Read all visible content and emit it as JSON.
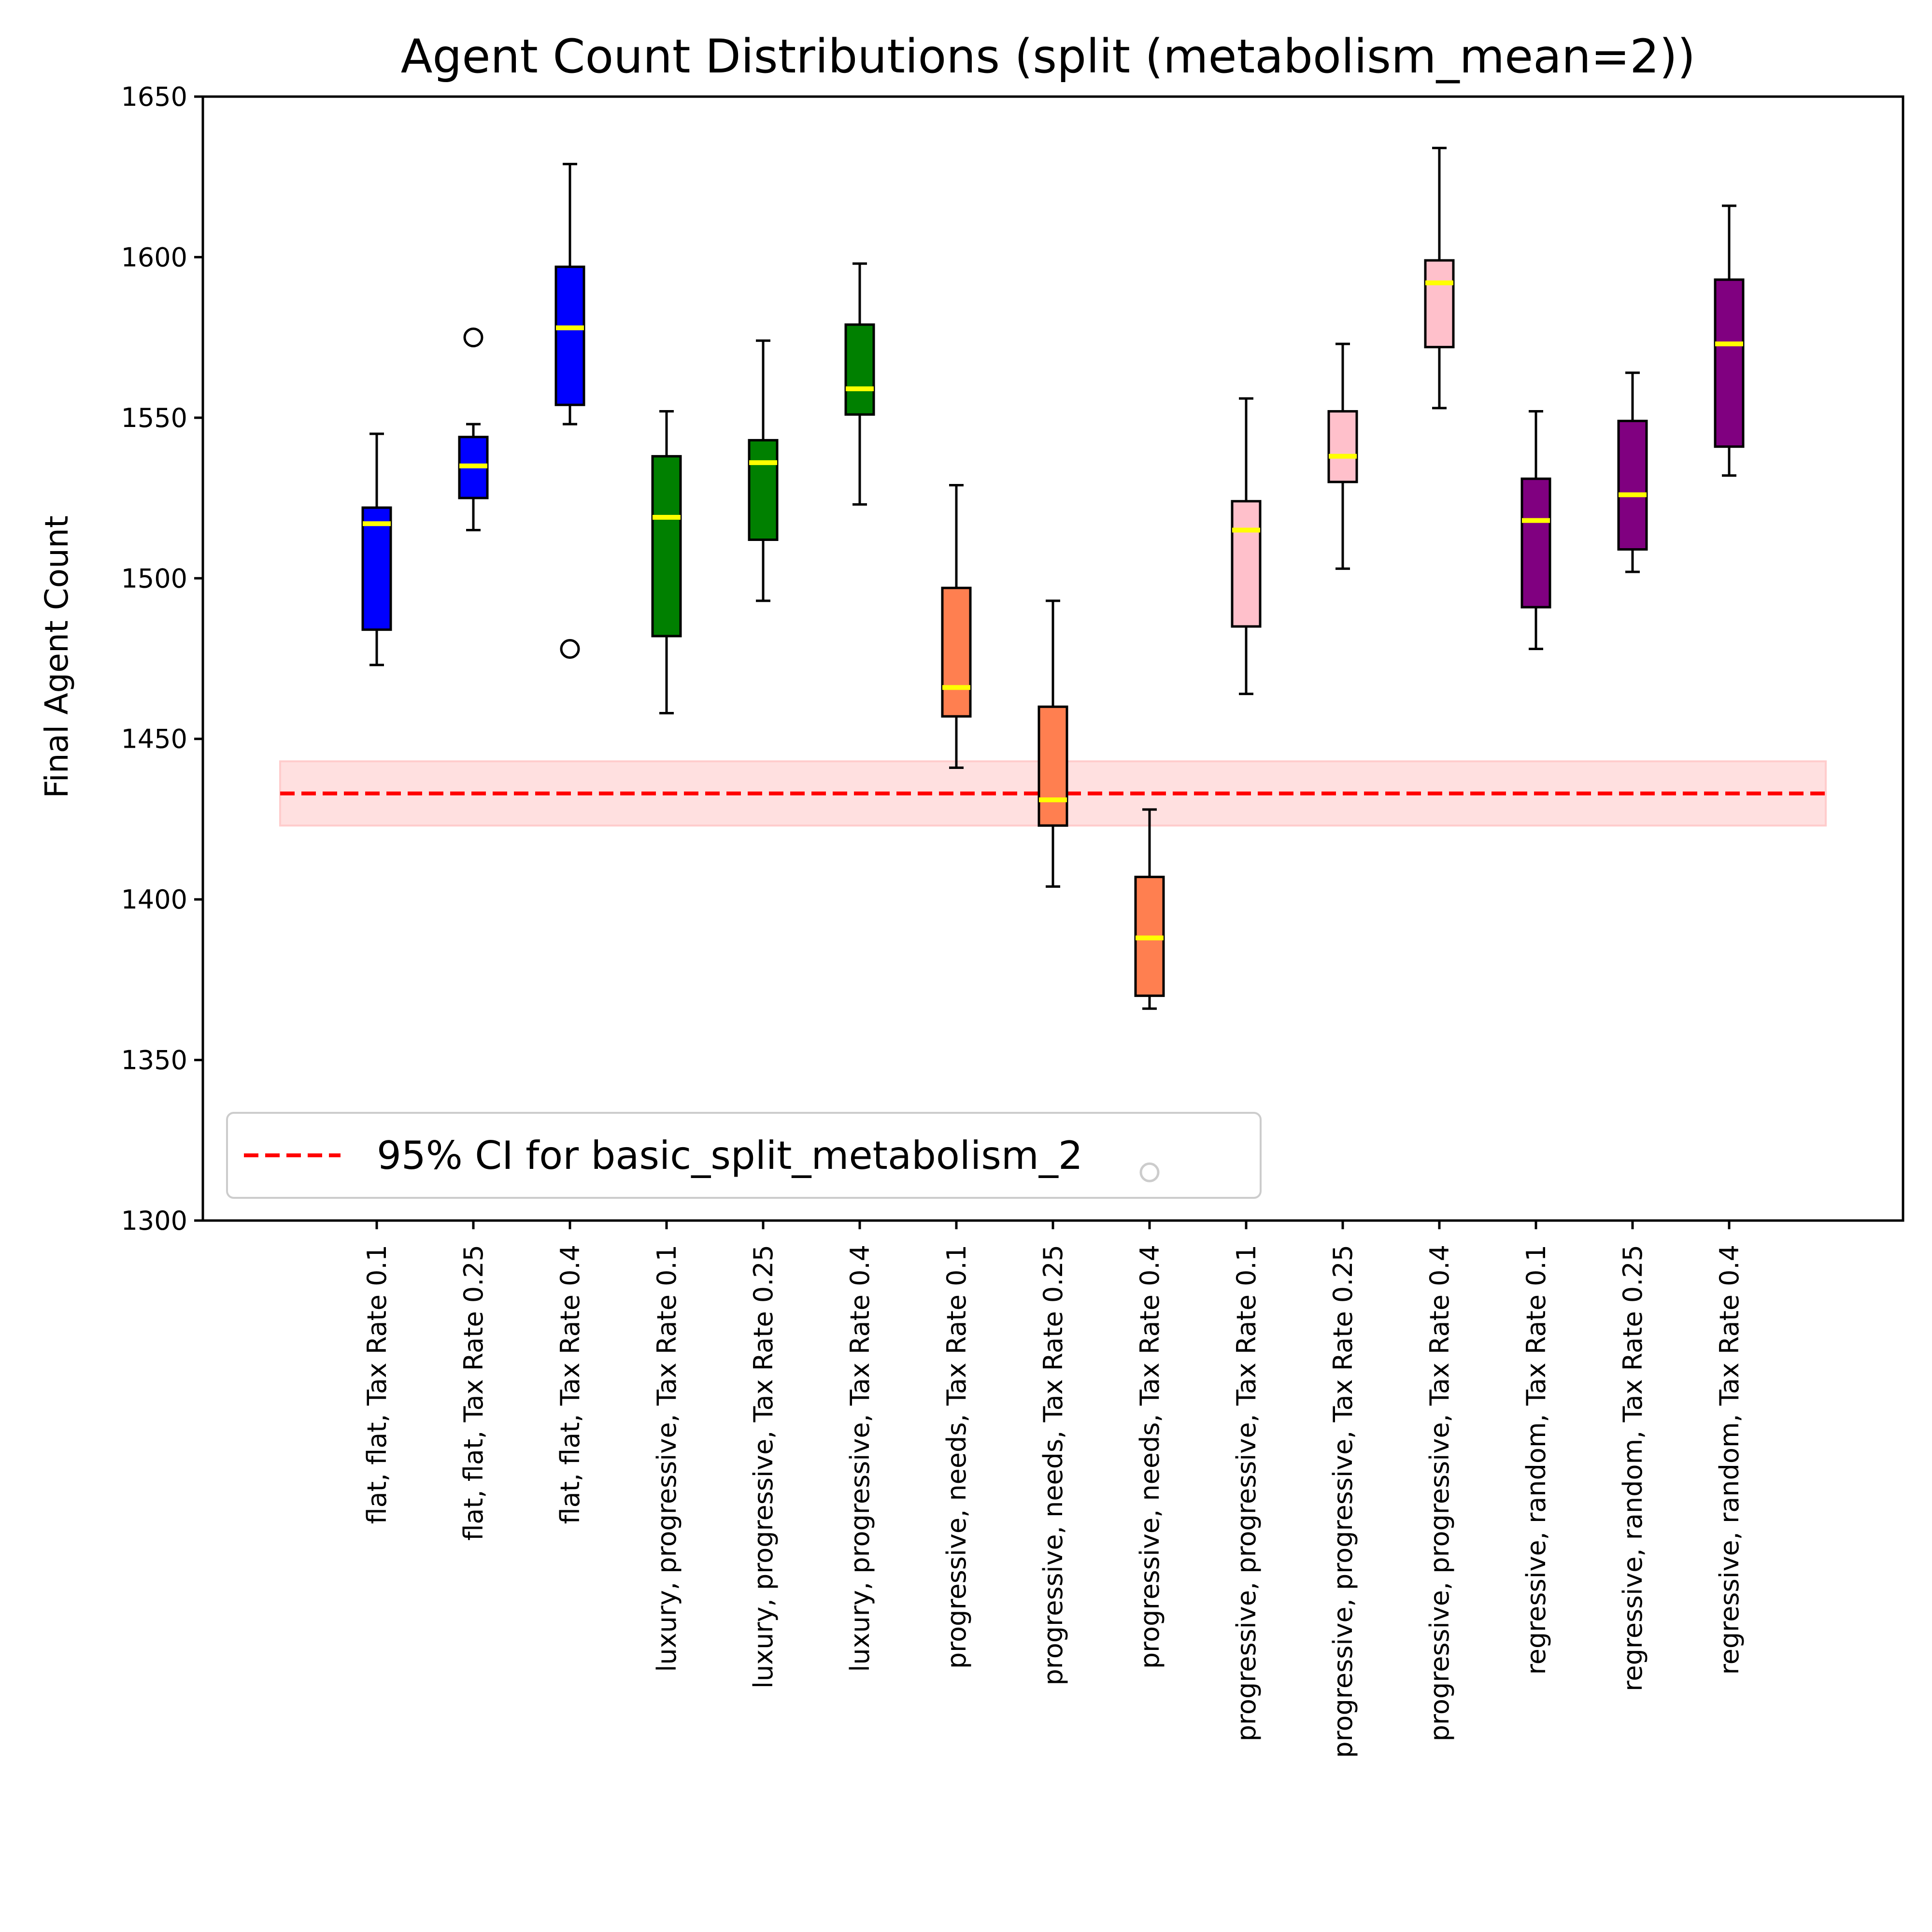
{
  "chart_data": {
    "type": "box",
    "title": "Agent Count Distributions (split (metabolism_mean=2))",
    "xlabel": "",
    "ylabel": "Final Agent Count",
    "ylim": [
      1300,
      1650
    ],
    "yticks": [
      1300,
      1350,
      1400,
      1450,
      1500,
      1550,
      1600,
      1650
    ],
    "grid": false,
    "legend": {
      "placement": "lower-left",
      "entries": [
        {
          "label": "95% CI for basic_split_metabolism_2",
          "style": "dashed",
          "color": "#ff0000"
        }
      ]
    },
    "reference": {
      "mean": 1433,
      "ci_low": 1423,
      "ci_high": 1443,
      "color": "#ff0000",
      "band_color": "#ffcccc"
    },
    "median_color": "#ffff00",
    "categories": [
      "flat, flat, Tax Rate 0.1",
      "flat, flat, Tax Rate 0.25",
      "flat, flat, Tax Rate 0.4",
      "luxury, progressive, Tax Rate 0.1",
      "luxury, progressive, Tax Rate 0.25",
      "luxury, progressive, Tax Rate 0.4",
      "progressive, needs, Tax Rate 0.1",
      "progressive, needs, Tax Rate 0.25",
      "progressive, needs, Tax Rate 0.4",
      "progressive, progressive, Tax Rate 0.1",
      "progressive, progressive, Tax Rate 0.25",
      "progressive, progressive, Tax Rate 0.4",
      "regressive, random, Tax Rate 0.1",
      "regressive, random, Tax Rate 0.25",
      "regressive, random, Tax Rate 0.4"
    ],
    "boxes": [
      {
        "whislo": 1473,
        "q1": 1484,
        "med": 1517,
        "q3": 1522,
        "whishi": 1545,
        "fliers": [],
        "color": "#0000ff"
      },
      {
        "whislo": 1515,
        "q1": 1525,
        "med": 1535,
        "q3": 1544,
        "whishi": 1548,
        "fliers": [
          1575
        ],
        "color": "#0000ff"
      },
      {
        "whislo": 1548,
        "q1": 1554,
        "med": 1578,
        "q3": 1597,
        "whishi": 1629,
        "fliers": [
          1478
        ],
        "color": "#0000ff"
      },
      {
        "whislo": 1458,
        "q1": 1482,
        "med": 1519,
        "q3": 1538,
        "whishi": 1552,
        "fliers": [],
        "color": "#008000"
      },
      {
        "whislo": 1493,
        "q1": 1512,
        "med": 1536,
        "q3": 1543,
        "whishi": 1574,
        "fliers": [],
        "color": "#008000"
      },
      {
        "whislo": 1523,
        "q1": 1551,
        "med": 1559,
        "q3": 1579,
        "whishi": 1598,
        "fliers": [],
        "color": "#008000"
      },
      {
        "whislo": 1441,
        "q1": 1457,
        "med": 1466,
        "q3": 1497,
        "whishi": 1529,
        "fliers": [],
        "color": "#ff7f50"
      },
      {
        "whislo": 1404,
        "q1": 1423,
        "med": 1431,
        "q3": 1460,
        "whishi": 1493,
        "fliers": [],
        "color": "#ff7f50"
      },
      {
        "whislo": 1366,
        "q1": 1370,
        "med": 1388,
        "q3": 1407,
        "whishi": 1428,
        "fliers": [
          1315
        ],
        "color": "#ff7f50"
      },
      {
        "whislo": 1464,
        "q1": 1485,
        "med": 1515,
        "q3": 1524,
        "whishi": 1556,
        "fliers": [],
        "color": "#ffc0cb"
      },
      {
        "whislo": 1503,
        "q1": 1530,
        "med": 1538,
        "q3": 1552,
        "whishi": 1573,
        "fliers": [],
        "color": "#ffc0cb"
      },
      {
        "whislo": 1553,
        "q1": 1572,
        "med": 1592,
        "q3": 1599,
        "whishi": 1634,
        "fliers": [],
        "color": "#ffc0cb"
      },
      {
        "whislo": 1478,
        "q1": 1491,
        "med": 1518,
        "q3": 1531,
        "whishi": 1552,
        "fliers": [],
        "color": "#800080"
      },
      {
        "whislo": 1502,
        "q1": 1509,
        "med": 1526,
        "q3": 1549,
        "whishi": 1564,
        "fliers": [],
        "color": "#800080"
      },
      {
        "whislo": 1532,
        "q1": 1541,
        "med": 1573,
        "q3": 1593,
        "whishi": 1616,
        "fliers": [],
        "color": "#800080"
      }
    ]
  }
}
